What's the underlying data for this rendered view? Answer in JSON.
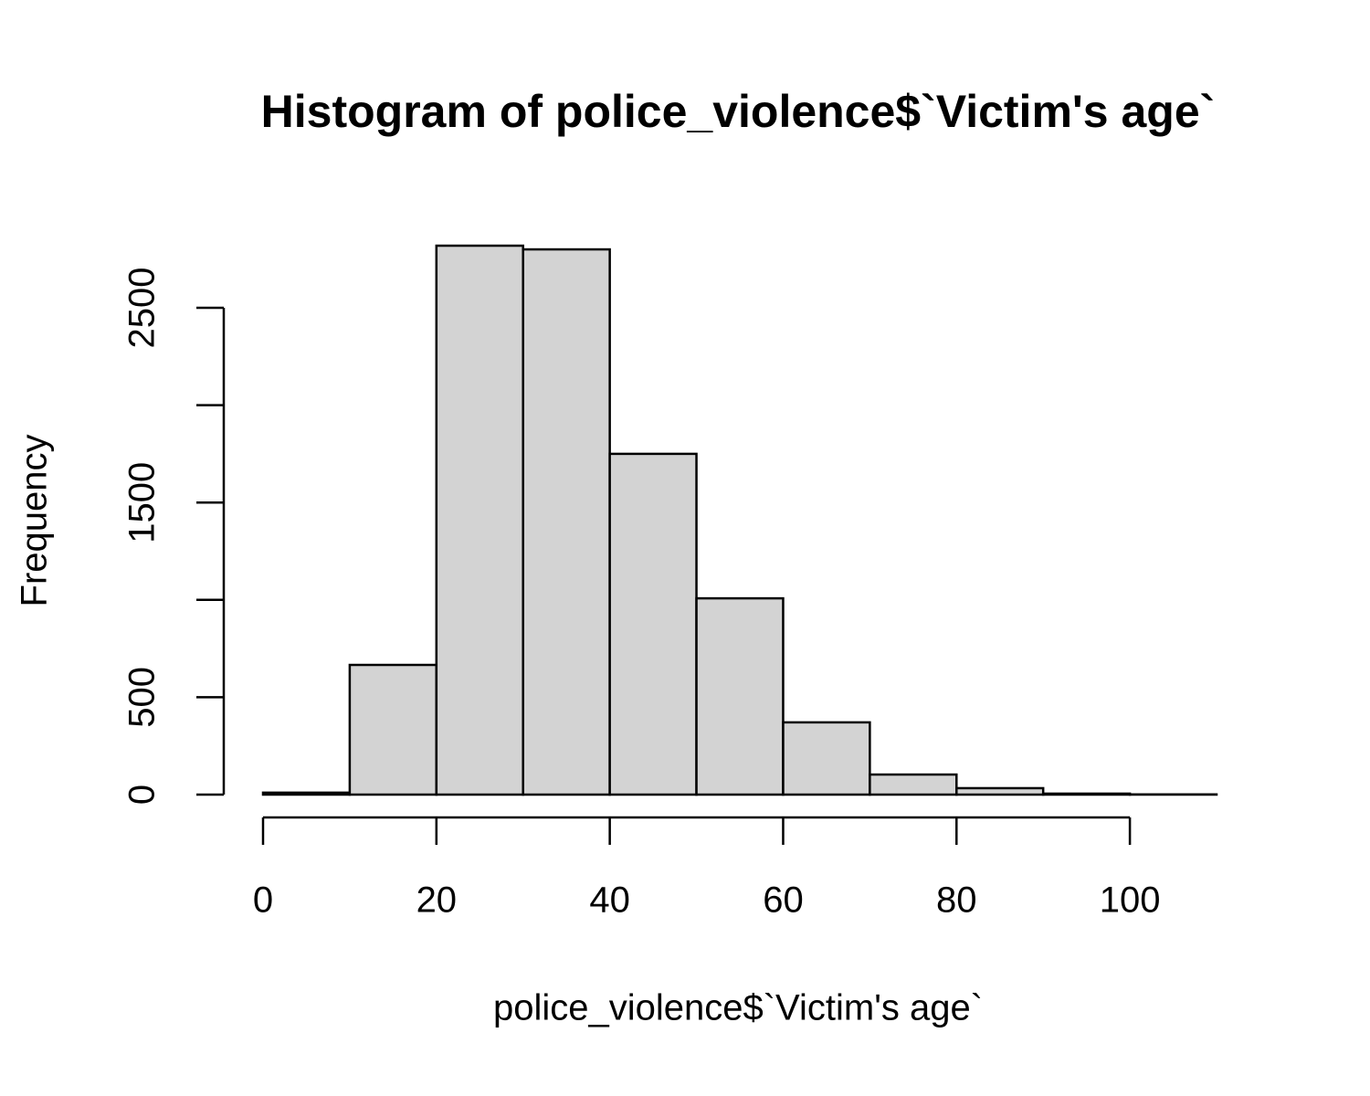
{
  "chart_data": {
    "type": "histogram",
    "title": "Histogram of police_violence$`Victim's age`",
    "x_label": "police_violence$`Victim's age`",
    "y_label": "Frequency",
    "bins": [
      0,
      10,
      20,
      30,
      40,
      50,
      60,
      70,
      80,
      90,
      100,
      110
    ],
    "values": [
      10,
      666,
      2819,
      2800,
      1750,
      1008,
      371,
      103,
      33,
      5,
      1
    ],
    "color": "#d3d3d3",
    "xlim": [
      0,
      110
    ],
    "xticks": [
      0,
      20,
      40,
      60,
      80,
      100
    ],
    "ylim": [
      0,
      2819
    ],
    "yticks": [
      0,
      500,
      {
        "value": 1000,
        "label": null
      },
      1500,
      {
        "value": 2000,
        "label": null
      },
      2500
    ],
    "grid": false
  }
}
